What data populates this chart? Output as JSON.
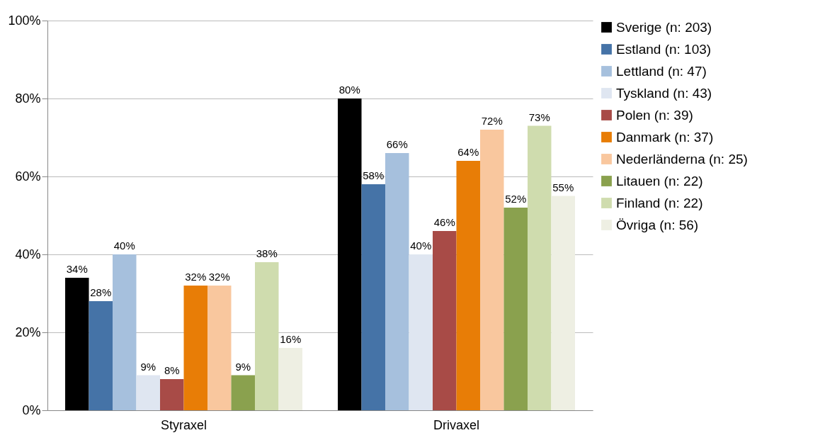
{
  "chart_data": {
    "type": "bar",
    "categories": [
      "Styraxel",
      "Drivaxel"
    ],
    "series": [
      {
        "name": "Sverige (n: 203)",
        "color": "#000000",
        "values": [
          34,
          80
        ],
        "value_labels": [
          "34%",
          "80%"
        ]
      },
      {
        "name": "Estland (n: 103)",
        "color": "#4573a7",
        "values": [
          28,
          58
        ],
        "value_labels": [
          "28%",
          "58%"
        ]
      },
      {
        "name": "Lettland (n: 47)",
        "color": "#a6c0dd",
        "values": [
          40,
          66
        ],
        "value_labels": [
          "40%",
          "66%"
        ]
      },
      {
        "name": "Tyskland (n: 43)",
        "color": "#dfe6f1",
        "values": [
          9,
          40
        ],
        "value_labels": [
          "9%",
          "40%"
        ]
      },
      {
        "name": "Polen (n: 39)",
        "color": "#a84b47",
        "values": [
          8,
          46
        ],
        "value_labels": [
          "8%",
          "46%"
        ]
      },
      {
        "name": "Danmark (n: 37)",
        "color": "#e87d06",
        "values": [
          32,
          64
        ],
        "value_labels": [
          "32%",
          "64%"
        ]
      },
      {
        "name": "Nederländerna (n: 25)",
        "color": "#f9c79e",
        "values": [
          32,
          72
        ],
        "value_labels": [
          "32%",
          "72%"
        ]
      },
      {
        "name": "Litauen (n: 22)",
        "color": "#8aa14e",
        "values": [
          9,
          52
        ],
        "value_labels": [
          "9%",
          "52%"
        ]
      },
      {
        "name": "Finland (n: 22)",
        "color": "#cfdcae",
        "values": [
          38,
          73
        ],
        "value_labels": [
          "38%",
          "73%"
        ]
      },
      {
        "name": "Övriga (n: 56)",
        "color": "#eeefe3",
        "values": [
          16,
          55
        ],
        "value_labels": [
          "16%",
          "55%"
        ]
      }
    ],
    "ylim": [
      0,
      100
    ],
    "yticks": [
      {
        "value": 0,
        "label": "0%"
      },
      {
        "value": 20,
        "label": "20%"
      },
      {
        "value": 40,
        "label": "40%"
      },
      {
        "value": 60,
        "label": "60%"
      },
      {
        "value": 80,
        "label": "80%"
      },
      {
        "value": 100,
        "label": "100%"
      }
    ],
    "grid": "y",
    "legend": "right"
  }
}
